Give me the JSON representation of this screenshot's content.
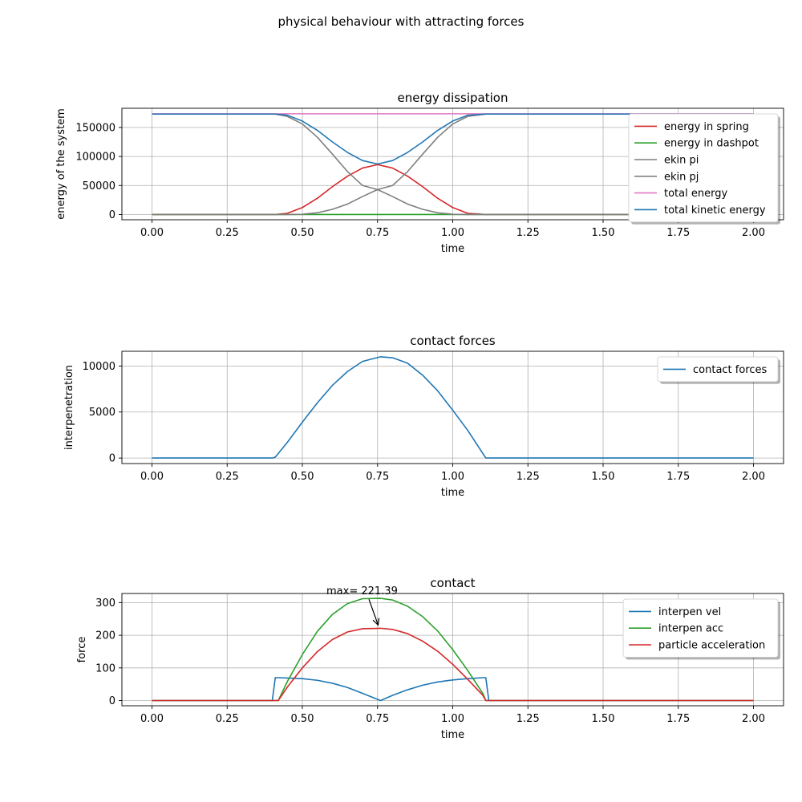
{
  "figure": {
    "suptitle": "physical behaviour with attracting forces"
  },
  "chart_data": [
    {
      "type": "line",
      "title": "energy dissipation",
      "xlabel": "time",
      "ylabel": "energy of the system",
      "xlim": [
        -0.1,
        2.1
      ],
      "ylim": [
        -9000,
        183000
      ],
      "xticks": [
        0.0,
        0.25,
        0.5,
        0.75,
        1.0,
        1.25,
        1.5,
        1.75,
        2.0
      ],
      "xtick_labels": [
        "0.00",
        "0.25",
        "0.50",
        "0.75",
        "1.00",
        "1.25",
        "1.50",
        "1.75",
        "2.00"
      ],
      "yticks": [
        0,
        50000,
        100000,
        150000
      ],
      "ytick_labels": [
        "0",
        "50000",
        "100000",
        "150000"
      ],
      "grid": true,
      "legend_position": "upper right",
      "x": [
        0.0,
        0.1,
        0.2,
        0.3,
        0.41,
        0.45,
        0.5,
        0.55,
        0.6,
        0.65,
        0.7,
        0.75,
        0.8,
        0.85,
        0.9,
        0.95,
        1.0,
        1.05,
        1.11,
        1.2,
        1.4,
        1.6,
        1.8,
        2.0
      ],
      "series": [
        {
          "name": "energy in spring",
          "color": "#d62728",
          "values": [
            0,
            0,
            0,
            0,
            0,
            2000,
            12000,
            28000,
            48000,
            66000,
            80000,
            86000,
            80000,
            66000,
            48000,
            28000,
            12000,
            2000,
            0,
            0,
            0,
            0,
            0,
            0
          ]
        },
        {
          "name": "energy in dashpot",
          "color": "#2ca02c",
          "values": [
            0,
            0,
            0,
            0,
            0,
            0,
            0,
            0,
            0,
            0,
            0,
            0,
            0,
            0,
            0,
            0,
            0,
            0,
            0,
            0,
            0,
            0,
            0,
            0
          ]
        },
        {
          "name": "ekin pi",
          "color": "#7f7f7f",
          "values": [
            173000,
            173000,
            173000,
            173000,
            173000,
            169000,
            156000,
            133000,
            104000,
            74000,
            50000,
            43000,
            31000,
            18000,
            9000,
            3000,
            500,
            0,
            0,
            0,
            0,
            0,
            0,
            0
          ]
        },
        {
          "name": "ekin pj",
          "color": "#7f7f7f",
          "values": [
            0,
            0,
            0,
            0,
            0,
            0,
            500,
            3000,
            9000,
            18000,
            31000,
            43000,
            50000,
            74000,
            104000,
            133000,
            156000,
            169000,
            173000,
            173000,
            173000,
            173000,
            173000,
            173000
          ]
        },
        {
          "name": "total energy",
          "color": "#e377c2",
          "values": [
            173500,
            173500,
            173500,
            173500,
            173500,
            173500,
            173500,
            173500,
            173500,
            173500,
            173500,
            173500,
            173500,
            173500,
            173500,
            173500,
            173500,
            173500,
            173500,
            173500,
            173500,
            173500,
            173500,
            173500
          ]
        },
        {
          "name": "total kinetic energy",
          "color": "#1f77b4",
          "values": [
            173000,
            173000,
            173000,
            173000,
            173000,
            171000,
            161000,
            145000,
            125000,
            107000,
            93000,
            87000,
            93000,
            107000,
            125000,
            145000,
            161000,
            171000,
            173000,
            173000,
            173000,
            173000,
            173000,
            173000
          ]
        }
      ]
    },
    {
      "type": "line",
      "title": "contact forces",
      "xlabel": "time",
      "ylabel": "interpenetration",
      "xlim": [
        -0.1,
        2.1
      ],
      "ylim": [
        -600,
        11600
      ],
      "xticks": [
        0.0,
        0.25,
        0.5,
        0.75,
        1.0,
        1.25,
        1.5,
        1.75,
        2.0
      ],
      "xtick_labels": [
        "0.00",
        "0.25",
        "0.50",
        "0.75",
        "1.00",
        "1.25",
        "1.50",
        "1.75",
        "2.00"
      ],
      "yticks": [
        0,
        5000,
        10000
      ],
      "ytick_labels": [
        "0",
        "5000",
        "10000"
      ],
      "grid": true,
      "legend_position": "upper right",
      "x": [
        0.0,
        0.2,
        0.4,
        0.41,
        0.45,
        0.5,
        0.55,
        0.6,
        0.65,
        0.7,
        0.76,
        0.8,
        0.85,
        0.9,
        0.95,
        1.0,
        1.05,
        1.11,
        1.3,
        1.6,
        2.0
      ],
      "series": [
        {
          "name": "contact forces",
          "color": "#1f77b4",
          "values": [
            0,
            0,
            0,
            100,
            1700,
            3900,
            6000,
            7900,
            9400,
            10500,
            11000,
            10900,
            10300,
            9000,
            7300,
            5200,
            3000,
            0,
            0,
            0,
            0
          ]
        }
      ]
    },
    {
      "type": "line",
      "title": "contact",
      "xlabel": "time",
      "ylabel": "force",
      "xlim": [
        -0.1,
        2.1
      ],
      "ylim": [
        -16,
        328
      ],
      "xticks": [
        0.0,
        0.25,
        0.5,
        0.75,
        1.0,
        1.25,
        1.5,
        1.75,
        2.0
      ],
      "xtick_labels": [
        "0.00",
        "0.25",
        "0.50",
        "0.75",
        "1.00",
        "1.25",
        "1.50",
        "1.75",
        "2.00"
      ],
      "yticks": [
        0,
        100,
        200,
        300
      ],
      "ytick_labels": [
        "0",
        "100",
        "200",
        "300"
      ],
      "grid": true,
      "legend_position": "upper right",
      "annotation": {
        "text": "max= 221.39",
        "x": 0.76,
        "y": 221.39,
        "text_x": 0.58,
        "text_y": 330
      },
      "x": [
        0.0,
        0.2,
        0.4,
        0.41,
        0.42,
        0.45,
        0.5,
        0.55,
        0.6,
        0.65,
        0.7,
        0.76,
        0.8,
        0.85,
        0.9,
        0.95,
        1.0,
        1.05,
        1.1,
        1.11,
        1.12,
        1.3,
        1.6,
        2.0
      ],
      "series": [
        {
          "name": "interpen vel",
          "color": "#1f77b4",
          "values": [
            0,
            0,
            0,
            70,
            70,
            69,
            67,
            62,
            53,
            40,
            22,
            0,
            16,
            33,
            47,
            57,
            63,
            67,
            70,
            70,
            0,
            0,
            0,
            0
          ]
        },
        {
          "name": "interpen acc",
          "color": "#2ca02c",
          "values": [
            0,
            0,
            0,
            0,
            0,
            58,
            141,
            212,
            264,
            297,
            312,
            313,
            308,
            289,
            257,
            213,
            156,
            92,
            22,
            0,
            0,
            0,
            0,
            0
          ]
        },
        {
          "name": "particle acceleration",
          "color": "#d62728",
          "values": [
            0,
            0,
            0,
            0,
            0,
            41,
            100,
            150,
            187,
            210,
            220,
            221.39,
            218,
            205,
            182,
            151,
            111,
            65,
            16,
            0,
            0,
            0,
            0,
            0
          ]
        }
      ]
    }
  ]
}
